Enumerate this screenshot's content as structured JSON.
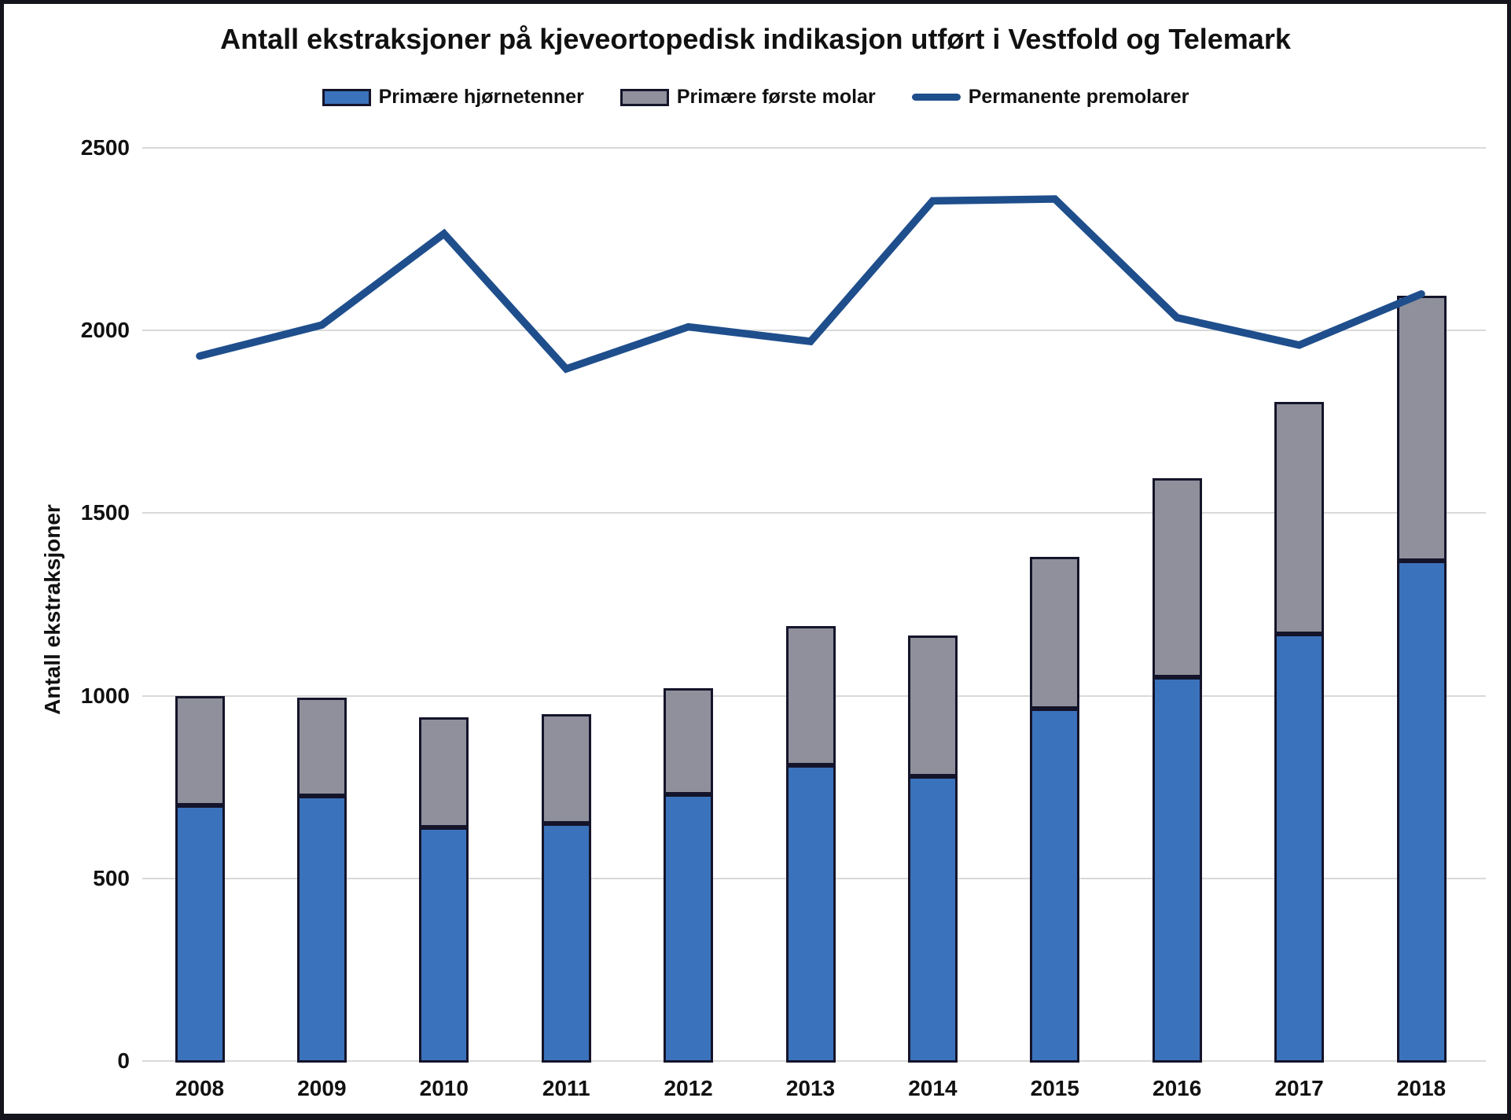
{
  "chart_data": {
    "type": "combo-stacked-bar-line",
    "title": "Antall ekstraksjoner på kjeveortopedisk indikasjon utført i Vestfold og Telemark",
    "xlabel": "",
    "ylabel": "Antall ekstraksjoner",
    "categories": [
      "2008",
      "2009",
      "2010",
      "2011",
      "2012",
      "2013",
      "2014",
      "2015",
      "2016",
      "2017",
      "2018"
    ],
    "y_ticks": [
      0,
      500,
      1000,
      1500,
      2000,
      2500
    ],
    "ylim": [
      0,
      2500
    ],
    "grid": "horizontal-light",
    "legend_position": "top-center",
    "series": [
      {
        "name": "Primære hjørnetenner",
        "type": "bar",
        "stack": "extractions",
        "color": "#3B72BC",
        "values": [
          700,
          725,
          640,
          650,
          730,
          810,
          780,
          965,
          1050,
          1170,
          1370
        ]
      },
      {
        "name": "Primære første molar",
        "type": "bar",
        "stack": "extractions",
        "color": "#8F909B",
        "values": [
          300,
          270,
          300,
          300,
          290,
          380,
          385,
          415,
          545,
          635,
          725
        ]
      },
      {
        "name": "Permanente premolarer",
        "type": "line",
        "color": "#1F4E8C",
        "values": [
          1930,
          2015,
          2265,
          1895,
          2010,
          1970,
          2355,
          2360,
          2035,
          1960,
          2100
        ]
      }
    ],
    "stacked_totals": [
      1000,
      995,
      940,
      950,
      1020,
      1190,
      1165,
      1380,
      1595,
      1805,
      2095
    ]
  },
  "colors": {
    "bar_border": "#14142A",
    "gridline": "#D9D9D9",
    "text": "#111111",
    "background": "#FFFFFF",
    "frame": "#14141C"
  }
}
